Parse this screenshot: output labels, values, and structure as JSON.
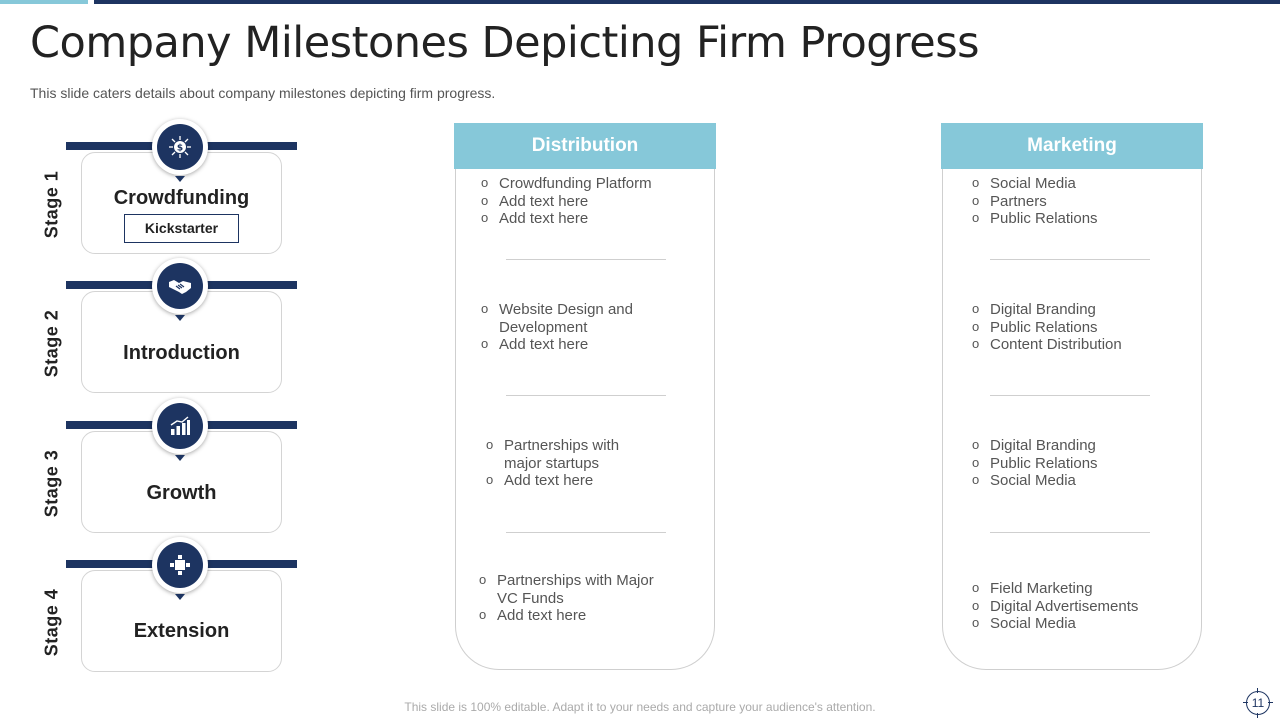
{
  "slide": {
    "title": "Company Milestones Depicting Firm Progress",
    "subtitle": "This slide caters details about company milestones depicting firm progress.",
    "footer": "This slide is 100% editable. Adapt it to your needs and capture your audience's attention.",
    "page_number": "11"
  },
  "colors": {
    "navy": "#1d3461",
    "accent": "#86c8d9"
  },
  "stages": [
    {
      "label": "Stage 1",
      "name": "Crowdfunding",
      "tag": "Kickstarter",
      "icon": "dollar-network-icon"
    },
    {
      "label": "Stage 2",
      "name": "Introduction",
      "icon": "handshake-icon"
    },
    {
      "label": "Stage 3",
      "name": "Growth",
      "icon": "bar-chart-growth-icon"
    },
    {
      "label": "Stage 4",
      "name": "Extension",
      "icon": "puzzle-expansion-icon"
    }
  ],
  "distribution": {
    "header": "Distribution",
    "groups": [
      [
        "Crowdfunding Platform",
        "Add text here",
        "Add text here"
      ],
      [
        "Website Design and Development",
        "Add text here"
      ],
      [
        "Partnerships with major startups",
        "Add text here"
      ],
      [
        "Partnerships with Major VC Funds",
        "Add text here"
      ]
    ]
  },
  "marketing": {
    "header": "Marketing",
    "groups": [
      [
        "Social Media",
        "Partners",
        "Public Relations"
      ],
      [
        "Digital Branding",
        "Public Relations",
        "Content Distribution"
      ],
      [
        "Digital Branding",
        "Public Relations",
        "Social Media"
      ],
      [
        "Field Marketing",
        "Digital Advertisements",
        "Social Media"
      ]
    ]
  }
}
